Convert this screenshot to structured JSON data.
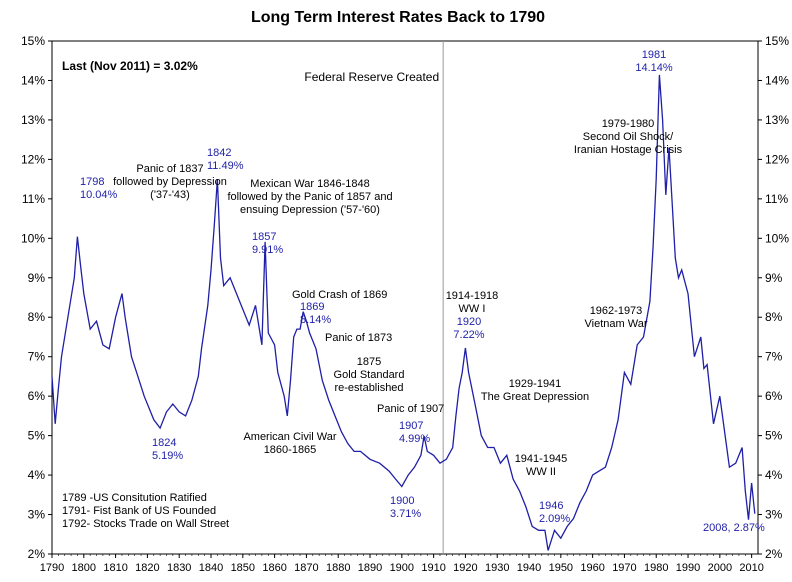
{
  "chart_data": {
    "type": "line",
    "title": "Long Term Interest Rates Back to 1790",
    "xlabel": "",
    "ylabel": "",
    "xlim": [
      1790,
      2012
    ],
    "ylim": [
      2,
      15
    ],
    "grid": false,
    "line_color": "#1f1fa8",
    "y_ticks": [
      "2%",
      "3%",
      "4%",
      "5%",
      "6%",
      "7%",
      "8%",
      "9%",
      "10%",
      "11%",
      "12%",
      "13%",
      "14%",
      "15%"
    ],
    "x_ticks": [
      "1790",
      "1800",
      "1810",
      "1820",
      "1830",
      "1840",
      "1850",
      "1860",
      "1870",
      "1880",
      "1890",
      "1900",
      "1910",
      "1920",
      "1930",
      "1940",
      "1950",
      "1960",
      "1970",
      "1980",
      "1990",
      "2000",
      "2010"
    ],
    "last_value_label": "Last (Nov 2011) = 3.02%",
    "reference_line": {
      "x": 1913,
      "label": "Federal Reserve Created"
    },
    "series": [
      {
        "x": [
          1790,
          1791,
          1792,
          1793,
          1795,
          1797,
          1798,
          1799,
          1800,
          1802,
          1804,
          1806,
          1808,
          1810,
          1812,
          1813,
          1814,
          1815,
          1817,
          1819,
          1821,
          1822,
          1823,
          1824,
          1826,
          1828,
          1830,
          1832,
          1834,
          1836,
          1837,
          1839,
          1840,
          1841,
          1842,
          1843,
          1844,
          1846,
          1848,
          1850,
          1852,
          1854,
          1856,
          1857,
          1858,
          1860,
          1861,
          1863,
          1864,
          1865,
          1866,
          1867,
          1868,
          1869,
          1870,
          1871,
          1873,
          1875,
          1877,
          1879,
          1881,
          1883,
          1885,
          1887,
          1890,
          1893,
          1896,
          1898,
          1900,
          1902,
          1904,
          1906,
          1907,
          1908,
          1910,
          1912,
          1914,
          1916,
          1917,
          1918,
          1919,
          1920,
          1921,
          1923,
          1925,
          1927,
          1929,
          1931,
          1933,
          1935,
          1937,
          1939,
          1941,
          1943,
          1945,
          1946,
          1948,
          1950,
          1952,
          1954,
          1956,
          1958,
          1960,
          1962,
          1964,
          1966,
          1968,
          1970,
          1972,
          1974,
          1976,
          1978,
          1979,
          1980,
          1981,
          1982,
          1983,
          1984,
          1986,
          1987,
          1988,
          1990,
          1992,
          1994,
          1995,
          1996,
          1998,
          2000,
          2002,
          2003,
          2005,
          2007,
          2008,
          2009,
          2010,
          2011
        ],
        "y": [
          6.5,
          5.3,
          6.2,
          7.0,
          8.0,
          9.0,
          10.04,
          9.3,
          8.6,
          7.7,
          7.9,
          7.3,
          7.2,
          8.0,
          8.6,
          8.0,
          7.5,
          7.0,
          6.5,
          6.0,
          5.6,
          5.4,
          5.3,
          5.19,
          5.6,
          5.8,
          5.6,
          5.5,
          5.9,
          6.5,
          7.2,
          8.3,
          9.2,
          10.3,
          11.49,
          9.5,
          8.8,
          9.0,
          8.6,
          8.2,
          7.8,
          8.3,
          7.3,
          9.91,
          7.6,
          7.3,
          6.6,
          6.0,
          5.5,
          6.4,
          7.5,
          7.7,
          7.7,
          8.14,
          7.9,
          7.6,
          7.2,
          6.4,
          5.9,
          5.5,
          5.1,
          4.8,
          4.6,
          4.6,
          4.4,
          4.3,
          4.1,
          3.9,
          3.71,
          4.0,
          4.2,
          4.5,
          4.99,
          4.6,
          4.5,
          4.3,
          4.4,
          4.7,
          5.5,
          6.2,
          6.6,
          7.22,
          6.6,
          5.8,
          5.0,
          4.7,
          4.7,
          4.3,
          4.5,
          3.9,
          3.6,
          3.2,
          2.7,
          2.6,
          2.6,
          2.09,
          2.6,
          2.4,
          2.7,
          2.9,
          3.3,
          3.6,
          4.0,
          4.1,
          4.2,
          4.7,
          5.4,
          6.6,
          6.3,
          7.3,
          7.5,
          8.4,
          9.8,
          11.5,
          14.14,
          13.0,
          11.1,
          12.3,
          9.5,
          9.0,
          9.2,
          8.6,
          7.0,
          7.5,
          6.7,
          6.8,
          5.3,
          6.0,
          4.8,
          4.2,
          4.3,
          4.7,
          3.6,
          2.87,
          3.8,
          3.02
        ]
      }
    ],
    "annotations": [
      {
        "id": "a1798",
        "lines": [
          "1798",
          "10.04%"
        ],
        "color": "blue"
      },
      {
        "id": "a1824",
        "lines": [
          "1824",
          "5.19%"
        ],
        "color": "blue"
      },
      {
        "id": "a1837",
        "lines": [
          "Panic of 1837",
          "followed by Depression",
          "('37-'43)"
        ],
        "color": "black"
      },
      {
        "id": "a1842",
        "lines": [
          "1842",
          "11.49%"
        ],
        "color": "blue"
      },
      {
        "id": "a1846",
        "lines": [
          "Mexican War 1846-1848",
          "followed by the Panic of 1857 and",
          "ensuing Depression ('57-'60)"
        ],
        "color": "black"
      },
      {
        "id": "a1857",
        "lines": [
          "1857",
          "9.91%"
        ],
        "color": "blue"
      },
      {
        "id": "a1869g",
        "lines": [
          "Gold Crash of 1869"
        ],
        "color": "black"
      },
      {
        "id": "a1869",
        "lines": [
          "1869",
          "8.14%"
        ],
        "color": "blue"
      },
      {
        "id": "a1873",
        "lines": [
          "Panic of 1873"
        ],
        "color": "black"
      },
      {
        "id": "a1875",
        "lines": [
          "1875",
          "Gold Standard",
          "re-established"
        ],
        "color": "black"
      },
      {
        "id": "acivil",
        "lines": [
          "American Civil War",
          "1860-1865"
        ],
        "color": "black"
      },
      {
        "id": "a1907p",
        "lines": [
          "Panic of 1907"
        ],
        "color": "black"
      },
      {
        "id": "a1907",
        "lines": [
          "1907",
          "4.99%"
        ],
        "color": "blue"
      },
      {
        "id": "a1900",
        "lines": [
          "1900",
          "3.71%"
        ],
        "color": "blue"
      },
      {
        "id": "aww1",
        "lines": [
          "1914-1918",
          "WW I"
        ],
        "color": "black"
      },
      {
        "id": "a1920",
        "lines": [
          "1920",
          "7.22%"
        ],
        "color": "blue"
      },
      {
        "id": "adep",
        "lines": [
          "1929-1941",
          "The Great Depression"
        ],
        "color": "black"
      },
      {
        "id": "aww2",
        "lines": [
          "1941-1945",
          "WW II"
        ],
        "color": "black"
      },
      {
        "id": "a1946",
        "lines": [
          "1946",
          "2.09%"
        ],
        "color": "blue"
      },
      {
        "id": "aviet",
        "lines": [
          "1962-1973",
          "Vietnam War"
        ],
        "color": "black"
      },
      {
        "id": "aoil",
        "lines": [
          "1979-1980",
          "Second Oil Shock/",
          "Iranian Hostage Crisis"
        ],
        "color": "black"
      },
      {
        "id": "a1981",
        "lines": [
          "1981",
          "14.14%"
        ],
        "color": "blue"
      },
      {
        "id": "a2008",
        "lines": [
          "2008, 2.87%"
        ],
        "color": "blue"
      },
      {
        "id": "afound",
        "lines": [
          "1789 -US Consitution Ratified",
          "1791- Fist Bank of US Founded",
          "1792- Stocks Trade on Wall Street"
        ],
        "color": "black"
      }
    ]
  }
}
